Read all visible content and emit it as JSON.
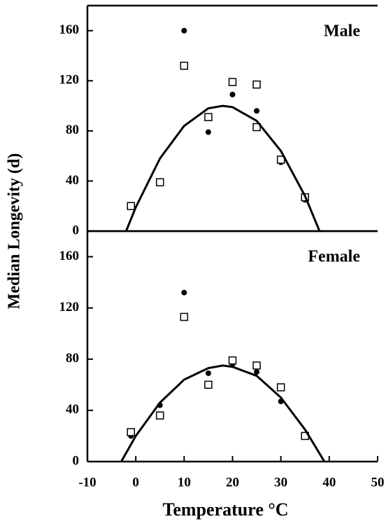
{
  "chart_data": [
    {
      "type": "scatter",
      "annotation": "Male",
      "y_label": "Median Longevity (d)",
      "xlim": [
        -10,
        50
      ],
      "ylim": [
        0,
        180
      ],
      "yticks": [
        0,
        40,
        80,
        120,
        160
      ],
      "series": [
        {
          "marker": "circle",
          "color": "#000000",
          "x": [
            -1,
            5,
            10,
            15,
            20,
            25,
            30,
            35
          ],
          "values": [
            20,
            39,
            160,
            79,
            109,
            96,
            55,
            25
          ]
        },
        {
          "marker": "square",
          "color": "#000000",
          "x": [
            -1,
            5,
            10,
            15,
            20,
            25,
            25,
            30,
            35
          ],
          "values": [
            20,
            39,
            132,
            91,
            119,
            117,
            83,
            57,
            27
          ]
        },
        {
          "marker": "line",
          "color": "#000000",
          "x": [
            -2,
            0,
            5,
            10,
            15,
            18,
            20,
            25,
            30,
            35,
            38
          ],
          "values": [
            0,
            19,
            58,
            84,
            98,
            100,
            99,
            88,
            64,
            28,
            0
          ]
        }
      ]
    },
    {
      "type": "scatter",
      "annotation": "Female",
      "x_label": "Temperature °C",
      "xlim": [
        -10,
        50
      ],
      "ylim": [
        0,
        180
      ],
      "xticks": [
        -10,
        0,
        10,
        20,
        30,
        40,
        50
      ],
      "yticks": [
        0,
        40,
        80,
        120,
        160
      ],
      "series": [
        {
          "marker": "circle",
          "color": "#000000",
          "x": [
            -1,
            5,
            10,
            15,
            20,
            25,
            30,
            35
          ],
          "values": [
            20,
            44,
            132,
            69,
            76,
            70,
            47,
            20
          ]
        },
        {
          "marker": "square",
          "color": "#000000",
          "x": [
            -1,
            5,
            10,
            15,
            20,
            25,
            30,
            35
          ],
          "values": [
            23,
            36,
            113,
            60,
            79,
            75,
            58,
            20
          ]
        },
        {
          "marker": "line",
          "color": "#000000",
          "x": [
            -3,
            0,
            5,
            10,
            15,
            18,
            20,
            25,
            30,
            35,
            39
          ],
          "values": [
            0,
            20,
            46,
            64,
            73,
            75,
            74,
            67,
            50,
            25,
            0
          ]
        }
      ]
    }
  ]
}
